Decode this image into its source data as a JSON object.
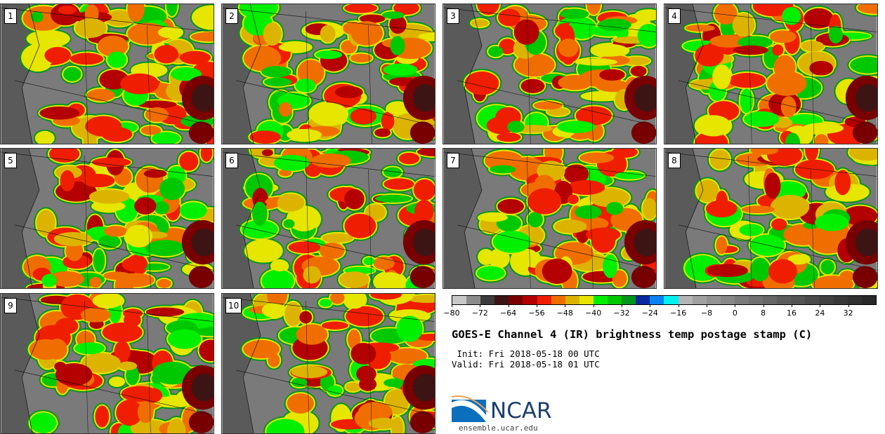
{
  "panels": [
    {
      "label": "1"
    },
    {
      "label": "2"
    },
    {
      "label": "3"
    },
    {
      "label": "4"
    },
    {
      "label": "5"
    },
    {
      "label": "6"
    },
    {
      "label": "7"
    },
    {
      "label": "8"
    },
    {
      "label": "9"
    },
    {
      "label": "10"
    }
  ],
  "colorbar": {
    "colors": [
      "#c8c8c8",
      "#8c8c8c",
      "#3c3c3c",
      "#3c1414",
      "#780000",
      "#b40000",
      "#f01e00",
      "#f06e00",
      "#dcb400",
      "#e6e600",
      "#00f000",
      "#00c800",
      "#00961e",
      "#0a28a0",
      "#0a82f0",
      "#00f0f0",
      "#b4b4b4",
      "#a0a0a0",
      "#929292",
      "#878787",
      "#7a7a7a",
      "#707070",
      "#666666",
      "#5c5c5c",
      "#545454",
      "#4a4a4a",
      "#404040",
      "#383838",
      "#303030",
      "#282828"
    ],
    "ticks": [
      "−80",
      "−72",
      "−64",
      "−56",
      "−48",
      "−40",
      "−32",
      "−24",
      "−16",
      "−8",
      "0",
      "8",
      "16",
      "24",
      "32"
    ],
    "min": -80,
    "max": 40
  },
  "title": "GOES-E Channel 4 (IR) brightness temp postage stamp (C)",
  "init": " Init: Fri 2018-05-18 00 UTC",
  "valid": "Valid: Fri 2018-05-18 01 UTC",
  "logo": {
    "text": "NCAR",
    "color": "#1a3f6f",
    "accent": "#0b6fbe"
  },
  "url": "ensemble.ucar.edu"
}
